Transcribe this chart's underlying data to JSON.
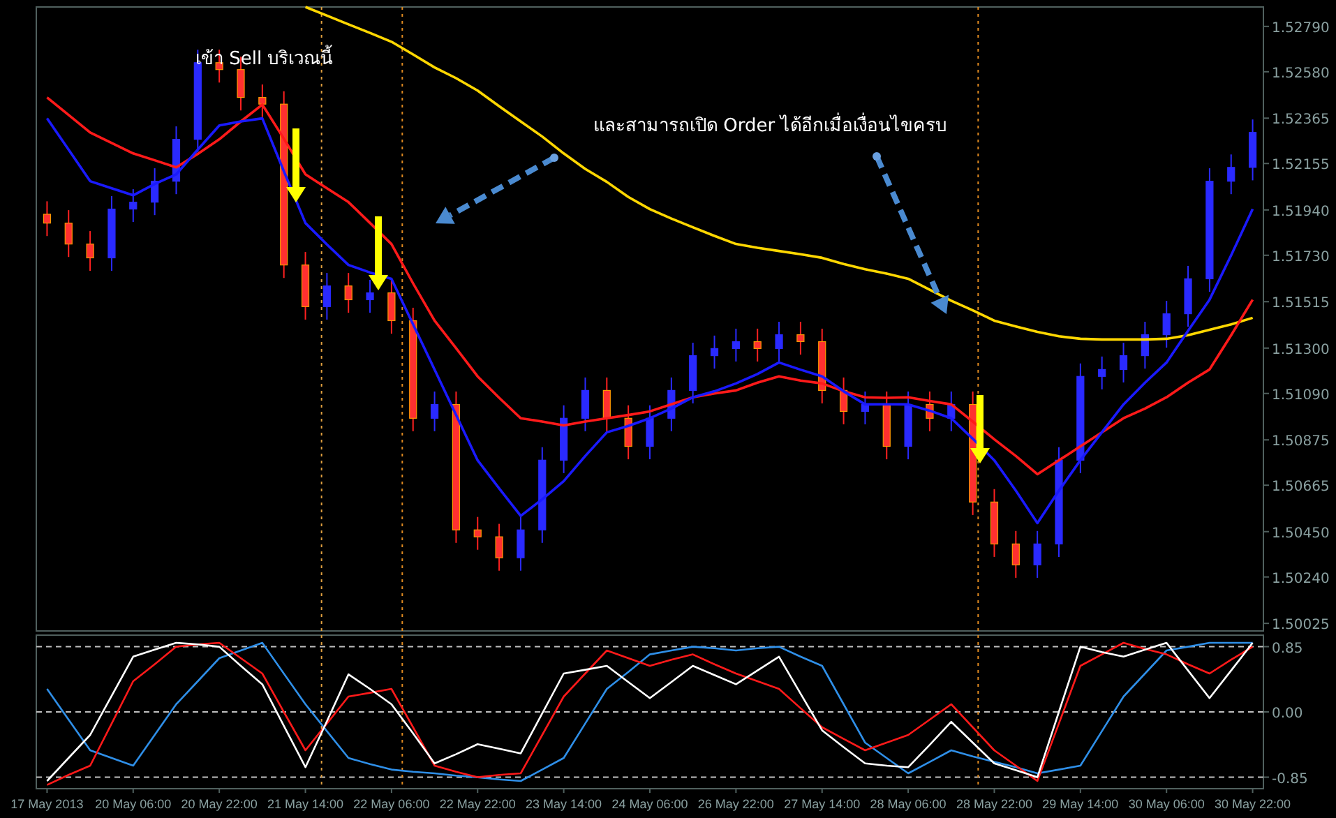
{
  "chart_data": [
    {
      "type": "candlestick",
      "categories": [
        null,
        null,
        null,
        null,
        null,
        null,
        null,
        null,
        null,
        null,
        null,
        null,
        null,
        null,
        null,
        null,
        null,
        null,
        null,
        null,
        null,
        null,
        null,
        null,
        null,
        null,
        null,
        null,
        null,
        null,
        null,
        null,
        null,
        null,
        null,
        null,
        null,
        null,
        null,
        null,
        null,
        null,
        null,
        null,
        null,
        null,
        null,
        null,
        null,
        null,
        null,
        null,
        null,
        null,
        null,
        null,
        null
      ],
      "ohlc": [
        [
          1.5192,
          1.5198,
          1.51819,
          1.51879
        ],
        [
          1.51879,
          1.51939,
          1.51722,
          1.51782
        ],
        [
          1.51782,
          1.51842,
          1.51658,
          1.51718
        ],
        [
          1.51718,
          1.52004,
          1.51658,
          1.51944
        ],
        [
          1.51944,
          1.52036,
          1.51884,
          1.51976
        ],
        [
          1.51976,
          1.52133,
          1.51916,
          1.52073
        ],
        [
          1.52073,
          1.52327,
          1.52013,
          1.52267
        ],
        [
          1.52267,
          1.52682,
          1.52207,
          1.52622
        ],
        [
          1.52622,
          1.52682,
          1.5253,
          1.5259
        ],
        [
          1.5259,
          1.5265,
          1.52401,
          1.52461
        ],
        [
          1.52461,
          1.52521,
          1.5237,
          1.5243
        ],
        [
          1.5243,
          1.5249,
          1.51625,
          1.51685
        ],
        [
          1.51685,
          1.51745,
          1.51432,
          1.51492
        ],
        [
          1.51492,
          1.51648,
          1.51432,
          1.51588
        ],
        [
          1.51588,
          1.51648,
          1.51464,
          1.51524
        ],
        [
          1.51524,
          1.51616,
          1.51464,
          1.51556
        ],
        [
          1.51556,
          1.51616,
          1.51367,
          1.51427
        ],
        [
          1.51427,
          1.51487,
          1.50915,
          1.50975
        ],
        [
          1.50975,
          1.51099,
          1.50915,
          1.51039
        ],
        [
          1.51039,
          1.51099,
          1.50398,
          1.50458
        ],
        [
          1.50458,
          1.50518,
          1.50366,
          1.50426
        ],
        [
          1.50426,
          1.50486,
          1.50269,
          1.50329
        ],
        [
          1.50329,
          1.50518,
          1.50269,
          1.50458
        ],
        [
          1.50458,
          1.50841,
          1.50398,
          1.50781
        ],
        [
          1.50781,
          1.51035,
          1.50721,
          1.50975
        ],
        [
          1.50975,
          1.51164,
          1.50915,
          1.51104
        ],
        [
          1.51104,
          1.51164,
          1.50915,
          1.50975
        ],
        [
          1.50975,
          1.51035,
          1.50785,
          1.50845
        ],
        [
          1.50845,
          1.51035,
          1.50785,
          1.50975
        ],
        [
          1.50975,
          1.51164,
          1.50915,
          1.51104
        ],
        [
          1.51104,
          1.51325,
          1.51044,
          1.51265
        ],
        [
          1.51265,
          1.51358,
          1.51205,
          1.51298
        ],
        [
          1.51298,
          1.5139,
          1.51238,
          1.5133
        ],
        [
          1.5133,
          1.5139,
          1.51238,
          1.51298
        ],
        [
          1.51298,
          1.51422,
          1.51238,
          1.51362
        ],
        [
          1.51362,
          1.51422,
          1.5127,
          1.5133
        ],
        [
          1.5133,
          1.5139,
          1.51044,
          1.51104
        ],
        [
          1.51104,
          1.51164,
          1.50947,
          1.51007
        ],
        [
          1.51007,
          1.51099,
          1.50947,
          1.51039
        ],
        [
          1.51039,
          1.51099,
          1.50785,
          1.50845
        ],
        [
          1.50845,
          1.51099,
          1.50785,
          1.51039
        ],
        [
          1.51039,
          1.51099,
          1.50915,
          1.50975
        ],
        [
          1.50975,
          1.51099,
          1.50915,
          1.51039
        ],
        [
          1.51039,
          1.51099,
          1.50527,
          1.50587
        ],
        [
          1.50587,
          1.50647,
          1.50333,
          1.50393
        ],
        [
          1.50393,
          1.50453,
          1.50236,
          1.50296
        ],
        [
          1.50296,
          1.50453,
          1.50236,
          1.50393
        ],
        [
          1.50393,
          1.50841,
          1.50333,
          1.50781
        ],
        [
          1.50781,
          1.51229,
          1.50721,
          1.51169
        ],
        [
          1.51169,
          1.51261,
          1.51109,
          1.51201
        ],
        [
          1.51201,
          1.51325,
          1.51141,
          1.51265
        ],
        [
          1.51265,
          1.51422,
          1.51205,
          1.51362
        ],
        [
          1.51362,
          1.51519,
          1.51302,
          1.51459
        ],
        [
          1.51459,
          1.51681,
          1.51399,
          1.51621
        ],
        [
          1.51621,
          1.52133,
          1.51561,
          1.52073
        ],
        [
          1.52073,
          1.52197,
          1.52013,
          1.52137
        ],
        [
          1.52137,
          1.52359,
          1.52077,
          1.52299
        ]
      ],
      "series": [
        {
          "type": "line",
          "color": "#ffd700",
          "values": [
            null,
            null,
            null,
            null,
            null,
            null,
            null,
            null,
            null,
            null,
            null,
            null,
            1.5288,
            1.5284,
            1.528,
            1.5276,
            1.52719,
            1.5266,
            1.526,
            1.5255,
            1.52493,
            1.5242,
            1.5235,
            1.5228,
            1.52202,
            1.5213,
            1.5207,
            1.52,
            1.51944,
            1.519,
            1.5186,
            1.5182,
            1.51782,
            1.51765,
            1.5175,
            1.51735,
            1.51718,
            1.5169,
            1.51665,
            1.51645,
            1.51621,
            1.5157,
            1.5152,
            1.51475,
            1.51427,
            1.514,
            1.51375,
            1.51355,
            1.51343,
            1.5134,
            1.5134,
            1.5134,
            1.51343,
            1.5136,
            1.51385,
            1.5141,
            1.5144
          ]
        },
        {
          "type": "line",
          "color": "#ff1a1a",
          "values": [
            1.52461,
            1.5238,
            1.52299,
            1.5225,
            1.52202,
            1.5217,
            1.52137,
            1.522,
            1.52267,
            1.5235,
            1.52428,
            1.5227,
            1.52105,
            1.5204,
            1.51976,
            1.5188,
            1.51782,
            1.516,
            1.51427,
            1.513,
            1.51169,
            1.5107,
            1.50975,
            1.5096,
            1.50942,
            1.5096,
            1.50975,
            1.5099,
            1.51007,
            1.5104,
            1.51072,
            1.5109,
            1.51104,
            1.5114,
            1.51169,
            1.5115,
            1.51136,
            1.511,
            1.51072,
            1.5107,
            1.51072,
            1.51055,
            1.51039,
            1.5096,
            1.50878,
            1.508,
            1.50716,
            1.5078,
            1.50845,
            1.5091,
            1.50975,
            1.5102,
            1.51072,
            1.5114,
            1.51201,
            1.5136,
            1.51524
          ]
        },
        {
          "type": "line",
          "color": "#1a1aff",
          "values": [
            1.52364,
            1.5222,
            1.52073,
            1.5204,
            1.52008,
            1.5206,
            1.52105,
            1.5222,
            1.52331,
            1.5235,
            1.52364,
            1.5212,
            1.51879,
            1.5178,
            1.51685,
            1.5165,
            1.51621,
            1.5141,
            1.51201,
            1.5099,
            1.50781,
            1.5065,
            1.50523,
            1.506,
            1.50684,
            1.508,
            1.5091,
            1.5094,
            1.50975,
            1.5102,
            1.51072,
            1.511,
            1.51136,
            1.5118,
            1.51233,
            1.512,
            1.51169,
            1.511,
            1.51039,
            1.5104,
            1.51039,
            1.5101,
            1.50975,
            1.5088,
            1.50781,
            1.5064,
            1.5049,
            1.5064,
            1.50781,
            1.5091,
            1.51039,
            1.5114,
            1.51233,
            1.5138,
            1.51524,
            1.5173,
            1.51944
          ]
        }
      ],
      "ylim": [
        1.4999,
        1.5288
      ],
      "yticks": [
        {
          "value": 1.5279,
          "label": "1.52790"
        },
        {
          "value": 1.5258,
          "label": "1.52580"
        },
        1.52365,
        1.52155,
        {
          "value": 1.5194,
          "label": "1.51940"
        },
        {
          "value": 1.5173,
          "label": "1.51730"
        },
        1.51515,
        {
          "value": 1.513,
          "label": "1.51300"
        },
        {
          "value": 1.5109,
          "label": "1.51090"
        },
        1.50875,
        1.50665,
        {
          "value": 1.5045,
          "label": "1.50450"
        },
        {
          "value": 1.5024,
          "label": "1.50240"
        },
        1.50025
      ],
      "tick_labels": "y",
      "annotations": [
        "เข้า Sell บริเวณนี้",
        "และสามารถเปิด Order ได้อีกเมื่อเงื่อนไขครบ"
      ]
    },
    {
      "type": "line",
      "categories": [
        "17 May 2013",
        null,
        null,
        null,
        "20 May 06:00",
        null,
        null,
        null,
        "20 May 22:00",
        null,
        null,
        null,
        "21 May 14:00",
        null,
        null,
        null,
        "22 May 06:00",
        null,
        null,
        null,
        "22 May 22:00",
        null,
        null,
        null,
        "23 May 14:00",
        null,
        null,
        null,
        "24 May 06:00",
        null,
        null,
        null,
        "26 May 22:00",
        null,
        null,
        null,
        "27 May 14:00",
        null,
        null,
        null,
        "28 May 06:00",
        null,
        null,
        null,
        "28 May 22:00",
        null,
        null,
        null,
        "29 May 14:00",
        null,
        null,
        null,
        "30 May 06:00",
        null,
        null,
        null,
        "30 May 22:00"
      ],
      "series": [
        {
          "color": "#2f8fe8",
          "values": [
            0.3,
            -0.1,
            -0.5,
            -0.6,
            -0.7,
            -0.3,
            0.1,
            0.4,
            0.7,
            0.8,
            0.9,
            0.5,
            0.1,
            -0.25,
            -0.6,
            -0.68,
            -0.75,
            -0.78,
            -0.8,
            -0.83,
            -0.85,
            -0.88,
            -0.9,
            -0.75,
            -0.6,
            -0.15,
            0.3,
            0.52,
            0.75,
            0.8,
            0.85,
            0.83,
            0.8,
            0.83,
            0.85,
            0.72,
            0.6,
            0.1,
            -0.4,
            -0.6,
            -0.8,
            -0.65,
            -0.5,
            -0.58,
            -0.65,
            -0.72,
            -0.8,
            -0.75,
            -0.7,
            -0.25,
            0.2,
            0.5,
            0.8,
            0.85,
            0.9,
            0.9,
            0.9
          ]
        },
        {
          "color": "#ff1a1a",
          "values": [
            -0.95,
            -0.82,
            -0.7,
            -0.15,
            0.4,
            0.62,
            0.85,
            0.88,
            0.9,
            0.7,
            0.5,
            0,
            -0.5,
            -0.15,
            0.2,
            0.25,
            0.3,
            -0.2,
            -0.7,
            -0.78,
            -0.85,
            -0.82,
            -0.8,
            -0.3,
            0.2,
            0.5,
            0.8,
            0.7,
            0.6,
            0.68,
            0.75,
            0.62,
            0.5,
            0.4,
            0.3,
            0.05,
            -0.2,
            -0.35,
            -0.5,
            -0.4,
            -0.3,
            -0.1,
            0.1,
            -0.2,
            -0.5,
            -0.7,
            -0.9,
            -0.15,
            0.6,
            0.75,
            0.9,
            0.82,
            0.75,
            0.62,
            0.5,
            0.68,
            0.85
          ]
        },
        {
          "color": "#ffffff",
          "values": [
            -0.9,
            -0.6,
            -0.3,
            0.21,
            0.72,
            0.81,
            0.9,
            0.88,
            0.85,
            0.6,
            0.36,
            -0.18,
            -0.72,
            -0.12,
            0.49,
            0.3,
            0.1,
            -0.28,
            -0.67,
            -0.55,
            -0.42,
            -0.48,
            -0.54,
            -0.02,
            0.5,
            0.55,
            0.6,
            0.39,
            0.18,
            0.39,
            0.6,
            0.48,
            0.36,
            0.54,
            0.72,
            0.24,
            -0.24,
            -0.46,
            -0.67,
            -0.7,
            -0.72,
            -0.43,
            -0.13,
            -0.4,
            -0.67,
            -0.76,
            -0.85,
            0,
            0.85,
            0.78,
            0.72,
            0.81,
            0.9,
            0.54,
            0.18,
            0.54,
            0.9
          ]
        }
      ],
      "ylim": [
        -1,
        1
      ],
      "yticks": [
        0.85,
        {
          "value": 0,
          "label": "0.00"
        },
        -0.85
      ],
      "grid": "y"
    }
  ]
}
